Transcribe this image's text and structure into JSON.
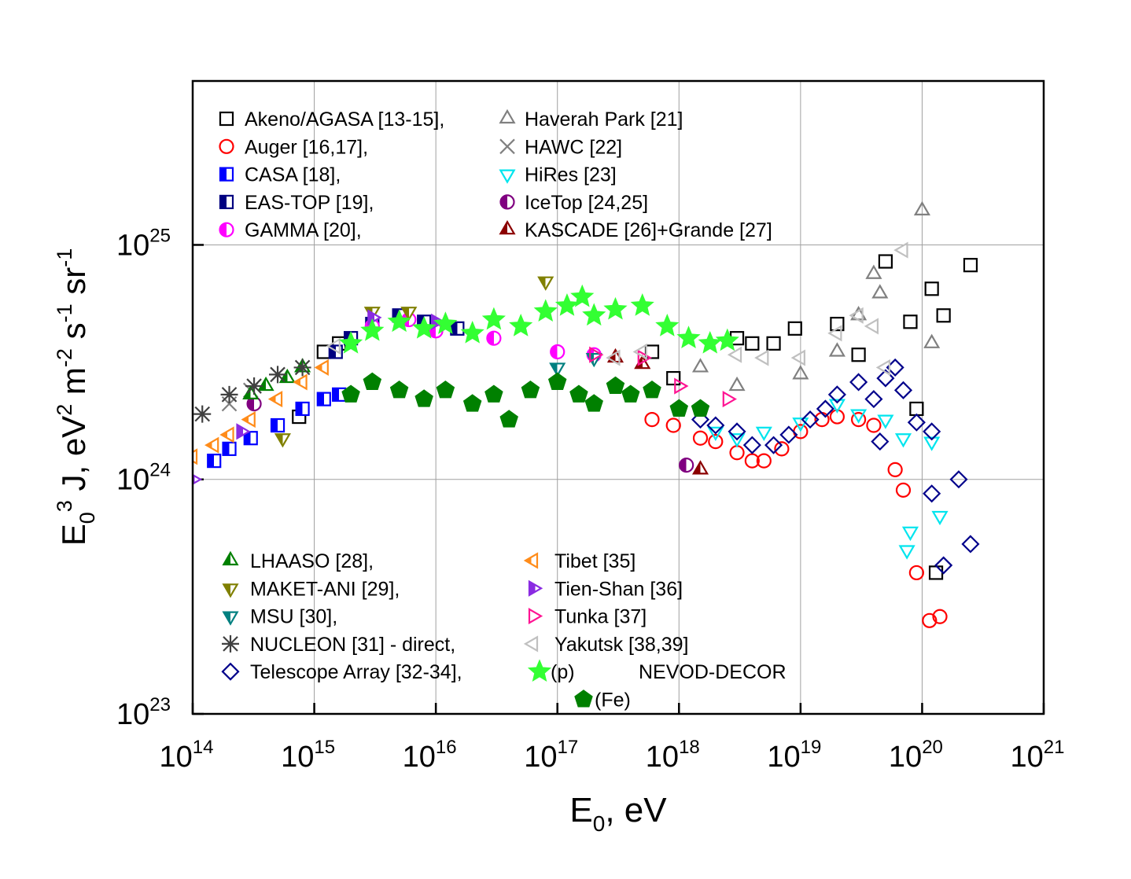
{
  "chart_data": {
    "type": "scatter",
    "xlabel": [
      "E",
      "0",
      ", eV"
    ],
    "ylabel": [
      "E",
      "0",
      "3",
      " J, eV",
      "2",
      " m",
      "-2",
      " s",
      "-1",
      " sr",
      "-1"
    ],
    "log_x": true,
    "log_y": true,
    "grid": true,
    "xlim": [
      100000000000000.0,
      1e+21
    ],
    "ylim": [
      1e+23,
      5e+25
    ],
    "xticks": [
      {
        "value": 100000000000000.0,
        "label": "10",
        "sup": "14"
      },
      {
        "value": 1000000000000000.0,
        "label": "10",
        "sup": "15"
      },
      {
        "value": 1e+16,
        "label": "10",
        "sup": "16"
      },
      {
        "value": 1e+17,
        "label": "10",
        "sup": "17"
      },
      {
        "value": 1e+18,
        "label": "10",
        "sup": "18"
      },
      {
        "value": 1e+19,
        "label": "10",
        "sup": "19"
      },
      {
        "value": 1e+20,
        "label": "10",
        "sup": "20"
      },
      {
        "value": 1e+21,
        "label": "10",
        "sup": "21"
      }
    ],
    "yticks": [
      {
        "value": 1e+23,
        "label": "10",
        "sup": "23"
      },
      {
        "value": 1e+24,
        "label": "10",
        "sup": "24"
      },
      {
        "value": 1e+25,
        "label": "10",
        "sup": "25"
      }
    ],
    "legend_note": "NEVOD-DECOR",
    "series": [
      {
        "name": "Akeno/AGASA [13-15],",
        "color": "#000000",
        "marker": "square",
        "fill": "open",
        "x": [
          750000000000000.0,
          1200000000000000.0,
          1600000000000000.0,
          6e+17,
          9e+17,
          3e+18,
          4e+18,
          6e+18,
          9e+18,
          2e+19,
          3e+19,
          5e+19,
          8e+19,
          9e+19,
          1.2e+20,
          1.3e+20,
          1.5e+20,
          2.5e+20
        ],
        "values": [
          1.85e+24,
          3.5e+24,
          3.8e+24,
          3.5e+24,
          2.7e+24,
          4e+24,
          3.8e+24,
          3.8e+24,
          4.4e+24,
          4.6e+24,
          3.4e+24,
          8.5e+24,
          4.7e+24,
          2e+24,
          6.5e+24,
          4e+23,
          5e+24,
          8.2e+24
        ]
      },
      {
        "name": "Auger [16,17],",
        "color": "#ff0000",
        "marker": "circle",
        "fill": "open",
        "x": [
          6e+17,
          9e+17,
          1.5e+18,
          2e+18,
          3e+18,
          4e+18,
          5e+18,
          7e+18,
          1e+19,
          1.5e+19,
          2e+19,
          3e+19,
          4e+19,
          6e+19,
          7e+19,
          9e+19,
          1.15e+20,
          1.4e+20
        ],
        "values": [
          1.8e+24,
          1.7e+24,
          1.5e+24,
          1.45e+24,
          1.3e+24,
          1.2e+24,
          1.2e+24,
          1.35e+24,
          1.6e+24,
          1.8e+24,
          1.85e+24,
          1.8e+24,
          1.7e+24,
          1.1e+24,
          9e+23,
          4e+23,
          2.5e+23,
          2.6e+23
        ]
      },
      {
        "name": "CASA [18],",
        "color": "#0000ff",
        "marker": "square",
        "fill": "half",
        "x": [
          150000000000000.0,
          200000000000000.0,
          300000000000000.0,
          500000000000000.0,
          800000000000000.0,
          1200000000000000.0,
          1600000000000000.0
        ],
        "values": [
          1.2e+24,
          1.35e+24,
          1.5e+24,
          1.7e+24,
          2e+24,
          2.2e+24,
          2.3e+24
        ]
      },
      {
        "name": "EAS-TOP [19],",
        "color": "#000080",
        "marker": "square",
        "fill": "half",
        "x": [
          1500000000000000.0,
          2000000000000000.0,
          3000000000000000.0,
          5000000000000000.0,
          8000000000000000.0,
          1.5e+16
        ],
        "values": [
          3.5e+24,
          4e+24,
          4.6e+24,
          5e+24,
          4.7e+24,
          4.4e+24
        ]
      },
      {
        "name": "GAMMA [20],",
        "color": "#ff00ff",
        "marker": "circle",
        "fill": "half",
        "x": [
          3000000000000000.0,
          6000000000000000.0,
          1e+16,
          3e+16,
          1e+17,
          2e+17
        ],
        "values": [
          4.5e+24,
          4.8e+24,
          4.3e+24,
          4e+24,
          3.5e+24,
          3.4e+24
        ]
      },
      {
        "name": "Haverah Park [21]",
        "color": "#808080",
        "marker": "triangle",
        "fill": "open",
        "x": [
          1.5e+18,
          3e+18,
          1e+19,
          2e+19,
          3e+19,
          4e+19,
          4.5e+19,
          1e+20,
          1.2e+20
        ],
        "values": [
          3e+24,
          2.5e+24,
          2.8e+24,
          3.5e+24,
          5e+24,
          7.5e+24,
          6.2e+24,
          1.4e+25,
          3.8e+24
        ]
      },
      {
        "name": "HAWC [22]",
        "color": "#808080",
        "marker": "cross",
        "fill": "open",
        "x": [
          200000000000000.0,
          300000000000000.0,
          500000000000000.0
        ],
        "values": [
          2.1e+24,
          2.4e+24,
          2.8e+24
        ]
      },
      {
        "name": "HiRes [23]",
        "color": "#00e5ee",
        "marker": "triangle-down",
        "fill": "open",
        "x": [
          2e+18,
          3e+18,
          5e+18,
          1e+19,
          2e+19,
          3e+19,
          5e+19,
          7e+19,
          8e+19,
          7.5e+19,
          1.2e+20,
          1.4e+20
        ],
        "values": [
          1.6e+24,
          1.5e+24,
          1.6e+24,
          1.75e+24,
          2.1e+24,
          1.9e+24,
          1.8e+24,
          1.5e+24,
          6e+23,
          5e+23,
          1.45e+24,
          7e+23
        ]
      },
      {
        "name": "IceTop [24,25]",
        "color": "#800080",
        "marker": "circle",
        "fill": "half",
        "x": [
          320000000000000.0,
          1.15e+18
        ],
        "values": [
          2.1e+24,
          1.15e+24
        ]
      },
      {
        "name": "KASCADE [26]+Grande [27]",
        "color": "#8b0000",
        "marker": "triangle",
        "fill": "half",
        "x": [
          3e+17,
          5e+17,
          1.5e+18
        ],
        "values": [
          3.3e+24,
          3.1e+24,
          1.1e+24
        ]
      },
      {
        "name": "LHAASO [28],",
        "color": "#008000",
        "marker": "triangle",
        "fill": "half",
        "x": [
          300000000000000.0,
          400000000000000.0,
          600000000000000.0,
          800000000000000.0
        ],
        "values": [
          2.3e+24,
          2.5e+24,
          2.7e+24,
          3e+24
        ]
      },
      {
        "name": "MAKET-ANI [29],",
        "color": "#808000",
        "marker": "triangle-down",
        "fill": "half",
        "x": [
          550000000000000.0,
          3000000000000000.0,
          6000000000000000.0,
          8e+16
        ],
        "values": [
          1.5e+24,
          5.2e+24,
          5.2e+24,
          7e+24
        ]
      },
      {
        "name": "MSU [30],",
        "color": "#008080",
        "marker": "triangle-down",
        "fill": "half",
        "x": [
          1e+17,
          2e+17
        ],
        "values": [
          3e+24,
          3.3e+24
        ]
      },
      {
        "name": "NUCLEON [31] - direct,",
        "color": "#404040",
        "marker": "asterisk",
        "fill": "open",
        "x": [
          120000000000000.0,
          200000000000000.0,
          320000000000000.0,
          500000000000000.0,
          800000000000000.0
        ],
        "values": [
          1.9e+24,
          2.3e+24,
          2.5e+24,
          2.8e+24,
          3e+24
        ]
      },
      {
        "name": "Telescope Array [32-34],",
        "color": "#00008b",
        "marker": "diamond",
        "fill": "open",
        "x": [
          1.5e+18,
          2e+18,
          3e+18,
          4e+18,
          6e+18,
          8e+18,
          1.2e+19,
          1.6e+19,
          2e+19,
          3e+19,
          4e+19,
          5e+19,
          6e+19,
          7e+19,
          9e+19,
          1.2e+20,
          1.2e+20,
          1.5e+20,
          2e+20,
          2.5e+20,
          4.5e+19
        ],
        "values": [
          1.8e+24,
          1.7e+24,
          1.6e+24,
          1.4e+24,
          1.4e+24,
          1.55e+24,
          1.8e+24,
          2e+24,
          2.3e+24,
          2.6e+24,
          2.2e+24,
          2.7e+24,
          3e+24,
          2.4e+24,
          1.75e+24,
          1.6e+24,
          8.7e+23,
          4.3e+23,
          1e+24,
          5.3e+23,
          1.45e+24
        ]
      },
      {
        "name": "Tibet [35]",
        "color": "#ff8c1a",
        "marker": "triangle-left",
        "fill": "half",
        "x": [
          100000000000000.0,
          150000000000000.0,
          200000000000000.0,
          300000000000000.0,
          500000000000000.0,
          800000000000000.0,
          1200000000000000.0
        ],
        "values": [
          1.25e+24,
          1.4e+24,
          1.55e+24,
          1.8e+24,
          2.2e+24,
          2.6e+24,
          3e+24
        ]
      },
      {
        "name": "Tien-Shan [36]",
        "color": "#8a2be2",
        "marker": "triangle-right",
        "fill": "half",
        "x": [
          100000000000000.0,
          250000000000000.0,
          3000000000000000.0,
          1e+16
        ],
        "values": [
          1e+24,
          1.6e+24,
          4.9e+24,
          4.7e+24
        ]
      },
      {
        "name": "Tunka [37]",
        "color": "#ff1493",
        "marker": "triangle-right",
        "fill": "open",
        "x": [
          2e+17,
          5e+17,
          1e+18,
          2.5e+18
        ],
        "values": [
          3.4e+24,
          3.3e+24,
          2.5e+24,
          2.2e+24
        ]
      },
      {
        "name": "Yakutsk [38,39]",
        "color": "#c0c0c0",
        "marker": "triangle-left",
        "fill": "open",
        "x": [
          1500000000000000.0,
          3e+17,
          5e+17,
          3e+18,
          5e+18,
          1e+19,
          2e+19,
          3e+19,
          4e+19,
          5e+19,
          7e+19
        ],
        "values": [
          3.7e+24,
          3.3e+24,
          3.5e+24,
          3.4e+24,
          3.3e+24,
          3.3e+24,
          4.2e+24,
          5e+24,
          4.5e+24,
          3e+24,
          9.5e+24
        ]
      },
      {
        "name": "(p)",
        "color": "#33ff33",
        "marker": "star",
        "fill": "filled",
        "x": [
          2000000000000000.0,
          3000000000000000.0,
          5000000000000000.0,
          8000000000000000.0,
          1.2e+16,
          2e+16,
          3e+16,
          5e+16,
          8e+16,
          1.2e+17,
          1.6e+17,
          2e+17,
          3e+17,
          5e+17,
          8e+17,
          1.2e+18,
          1.8e+18,
          2.5e+18
        ],
        "values": [
          3.8e+24,
          4.3e+24,
          4.7e+24,
          4.4e+24,
          4.6e+24,
          4.2e+24,
          4.8e+24,
          4.5e+24,
          5.2e+24,
          5.5e+24,
          6e+24,
          5e+24,
          5.3e+24,
          5.5e+24,
          4.5e+24,
          4e+24,
          3.8e+24,
          3.9e+24
        ]
      },
      {
        "name": "(Fe)",
        "color": "#008000",
        "marker": "pentagon",
        "fill": "filled",
        "x": [
          2000000000000000.0,
          3000000000000000.0,
          5000000000000000.0,
          8000000000000000.0,
          1.2e+16,
          2e+16,
          3e+16,
          4e+16,
          6e+16,
          1e+17,
          1.5e+17,
          2e+17,
          3e+17,
          4e+17,
          6e+17,
          1e+18,
          1.5e+18
        ],
        "values": [
          2.3e+24,
          2.6e+24,
          2.4e+24,
          2.2e+24,
          2.4e+24,
          2.1e+24,
          2.3e+24,
          1.8e+24,
          2.4e+24,
          2.6e+24,
          2.3e+24,
          2.1e+24,
          2.5e+24,
          2.3e+24,
          2.4e+24,
          2e+24,
          2e+24
        ]
      }
    ]
  }
}
